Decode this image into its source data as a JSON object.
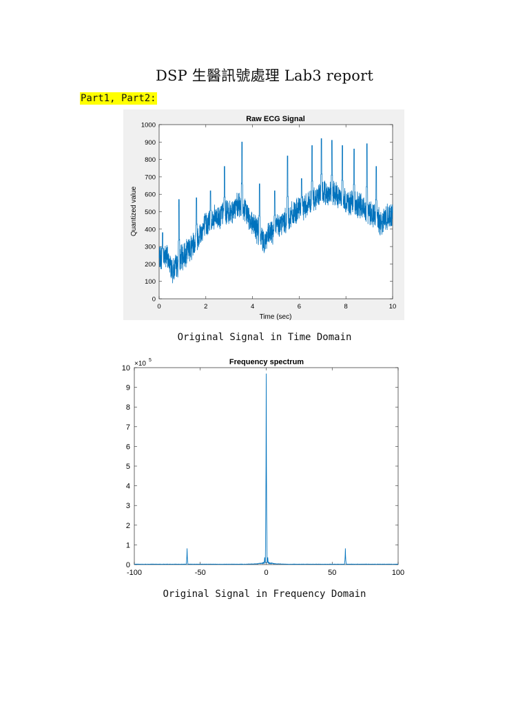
{
  "document": {
    "title": "DSP 生醫訊號處理 Lab3 report",
    "section_label": "Part1, Part2:",
    "caption_time": "Original Signal in Time Domain",
    "caption_freq": "Original Signal in Frequency Domain"
  },
  "chart_data": [
    {
      "type": "line",
      "title": "Raw ECG Signal",
      "xlabel": "Time (sec)",
      "ylabel": "Quantized value",
      "xlim": [
        0,
        10
      ],
      "ylim": [
        0,
        1000
      ],
      "xticks": [
        0,
        2,
        4,
        6,
        8,
        10
      ],
      "yticks": [
        0,
        100,
        200,
        300,
        400,
        500,
        600,
        700,
        800,
        900,
        1000
      ],
      "color": "#0072bd",
      "background": "#f0f0f0",
      "series": [
        {
          "baseline": {
            "x": [
              0,
              0.3,
              0.6,
              1.0,
              1.5,
              2.0,
              2.5,
              3.0,
              3.5,
              4.0,
              4.5,
              5.0,
              5.5,
              6.0,
              6.5,
              7.0,
              7.5,
              8.0,
              8.5,
              9.0,
              9.5,
              10
            ],
            "y": [
              230,
              250,
              160,
              240,
              320,
              430,
              470,
              500,
              540,
              440,
              330,
              410,
              460,
              510,
              560,
              610,
              600,
              560,
              540,
              500,
              440,
              490
            ]
          },
          "noise_amplitude": 65,
          "r_peaks": {
            "t": [
              0.15,
              0.85,
              1.6,
              2.2,
              2.8,
              3.55,
              4.3,
              4.95,
              5.5,
              6.1,
              6.55,
              6.95,
              7.4,
              7.85,
              8.35,
              8.9,
              9.3
            ],
            "v": [
              380,
              570,
              580,
              620,
              760,
              900,
              660,
              620,
              820,
              690,
              880,
              920,
              910,
              880,
              860,
              890,
              760
            ]
          }
        }
      ]
    },
    {
      "type": "line",
      "title": "Frequency spectrum",
      "exponent_label": "×10",
      "exponent_power": "5",
      "xlim": [
        -100,
        100
      ],
      "ylim": [
        0,
        10
      ],
      "xticks": [
        -100,
        -50,
        0,
        50,
        100
      ],
      "yticks": [
        0,
        1,
        2,
        3,
        4,
        5,
        6,
        7,
        8,
        9,
        10
      ],
      "color": "#0072bd",
      "background": "#ffffff",
      "series": [
        {
          "peaks": [
            {
              "f": 0,
              "value": 9.7
            },
            {
              "f": -60,
              "value": 0.82
            },
            {
              "f": 60,
              "value": 0.82
            },
            {
              "f": 1.2,
              "value": 0.35
            },
            {
              "f": -1.2,
              "value": 0.35
            }
          ],
          "low_frequency_spread": 0.12
        }
      ]
    }
  ]
}
